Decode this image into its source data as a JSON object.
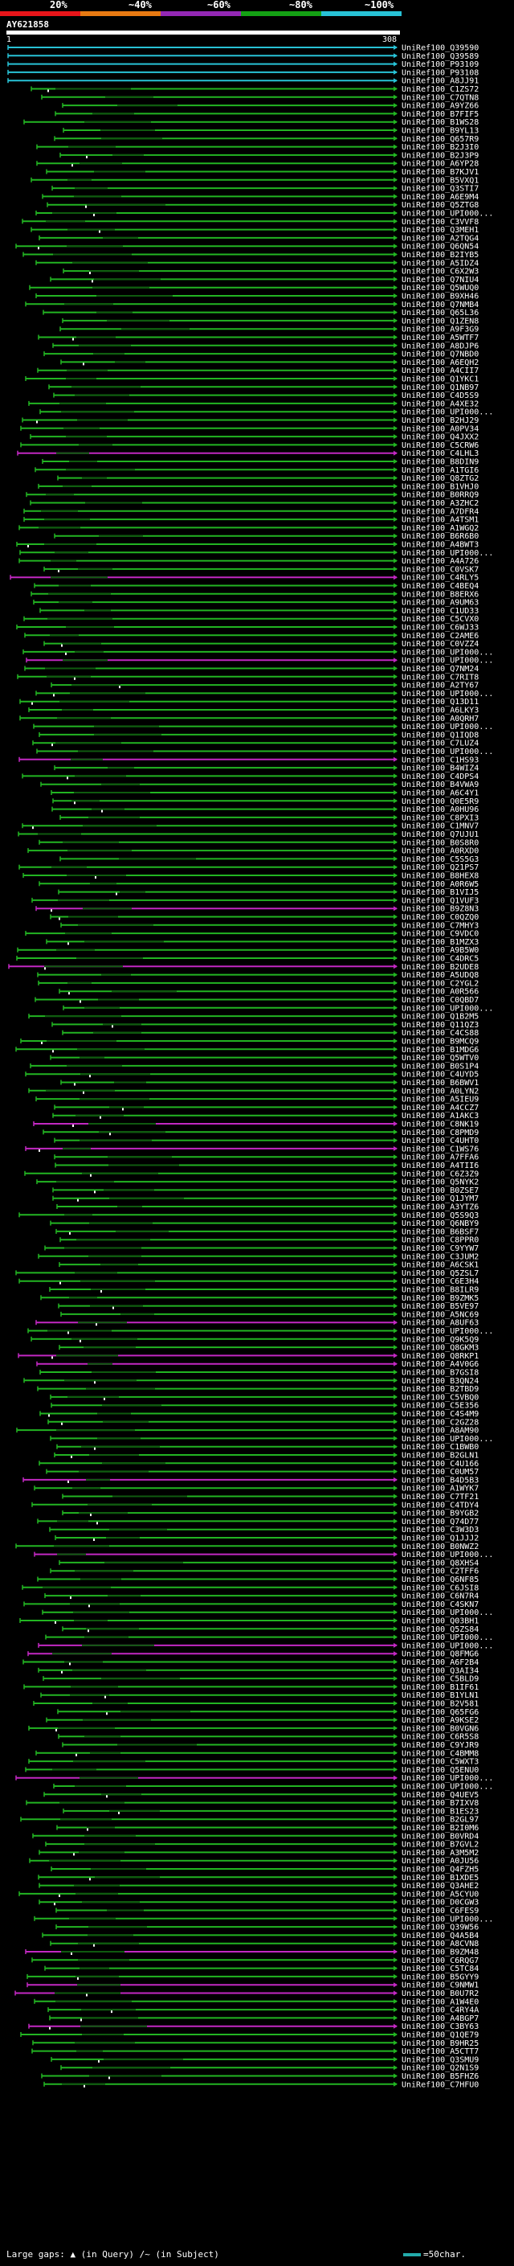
{
  "scale": {
    "labels": [
      "20%",
      "~40%",
      "~60%",
      "~80%",
      "~100%"
    ],
    "colors": [
      "#e8151a",
      "#e87a12",
      "#9428b5",
      "#14a114",
      "#28c2d6"
    ]
  },
  "query": {
    "title": "AY621858",
    "start": "1",
    "end": "308"
  },
  "palette": {
    "cyan": "#28c2d6",
    "green": "#22b522",
    "magenta": "#c228c2",
    "dark": "#0f5a0f"
  },
  "hits": [
    {
      "label": "UniRef100_Q39590",
      "color": "cyan"
    },
    {
      "label": "UniRef100_Q39589",
      "color": "cyan"
    },
    {
      "label": "UniRef100_P93109",
      "color": "cyan"
    },
    {
      "label": "UniRef100_P93108",
      "color": "cyan"
    },
    {
      "label": "UniRef100_A8JJ91",
      "color": "cyan"
    },
    {
      "label": "UniRef100_C1ZS72",
      "color": "green"
    },
    {
      "label": "UniRef100_C7QTN8",
      "color": "green"
    },
    {
      "label": "UniRef100_A9YZ66",
      "color": "green"
    },
    {
      "label": "UniRef100_B7FIF5",
      "color": "green"
    },
    {
      "label": "UniRef100_B1WS28",
      "color": "green"
    },
    {
      "label": "UniRef100_B9YL13",
      "color": "green"
    },
    {
      "label": "UniRef100_Q657R9",
      "color": "green"
    },
    {
      "label": "UniRef100_B2J3I0",
      "color": "green"
    },
    {
      "label": "UniRef100_B2J3P9",
      "color": "green"
    },
    {
      "label": "UniRef100_A6YP28",
      "color": "green"
    },
    {
      "label": "UniRef100_B7KJV1",
      "color": "green"
    },
    {
      "label": "UniRef100_B5VXQ1",
      "color": "green"
    },
    {
      "label": "UniRef100_Q3STI7",
      "color": "green"
    },
    {
      "label": "UniRef100_A6E9M4",
      "color": "green"
    },
    {
      "label": "UniRef100_Q5ZTG8",
      "color": "green"
    },
    {
      "label": "UniRef100_UPI000...",
      "color": "green"
    },
    {
      "label": "UniRef100_C3VVF8",
      "color": "green"
    },
    {
      "label": "UniRef100_Q3MEH1",
      "color": "green"
    },
    {
      "label": "UniRef100_A2TQG4",
      "color": "green"
    },
    {
      "label": "UniRef100_Q6QN54",
      "color": "green"
    },
    {
      "label": "UniRef100_B2IYB5",
      "color": "green"
    },
    {
      "label": "UniRef100_A5IDZ4",
      "color": "green"
    },
    {
      "label": "UniRef100_C6X2W3",
      "color": "green"
    },
    {
      "label": "UniRef100_Q7NIU4",
      "color": "green"
    },
    {
      "label": "UniRef100_Q5WUQ0",
      "color": "green"
    },
    {
      "label": "UniRef100_B9XH46",
      "color": "green"
    },
    {
      "label": "UniRef100_Q7NMB4",
      "color": "green"
    },
    {
      "label": "UniRef100_Q65L36",
      "color": "green"
    },
    {
      "label": "UniRef100_Q1ZEN8",
      "color": "green"
    },
    {
      "label": "UniRef100_A9F3G9",
      "color": "green"
    },
    {
      "label": "UniRef100_A5WTF7",
      "color": "green"
    },
    {
      "label": "UniRef100_A8DJP6",
      "color": "green"
    },
    {
      "label": "UniRef100_Q7NBD0",
      "color": "green"
    },
    {
      "label": "UniRef100_A6EQH2",
      "color": "green"
    },
    {
      "label": "UniRef100_A4CII7",
      "color": "green"
    },
    {
      "label": "UniRef100_Q1YKC1",
      "color": "green"
    },
    {
      "label": "UniRef100_Q1NB97",
      "color": "green"
    },
    {
      "label": "UniRef100_C4D5S9",
      "color": "green"
    },
    {
      "label": "UniRef100_A4XE32",
      "color": "green"
    },
    {
      "label": "UniRef100_UPI000...",
      "color": "green"
    },
    {
      "label": "UniRef100_B2HJ29",
      "color": "green"
    },
    {
      "label": "UniRef100_A0PV34",
      "color": "green"
    },
    {
      "label": "UniRef100_Q4JXX2",
      "color": "green"
    },
    {
      "label": "UniRef100_C5CRW6",
      "color": "green"
    },
    {
      "label": "UniRef100_C4LHL3",
      "color": "magenta"
    },
    {
      "label": "UniRef100_B8DIN9",
      "color": "green"
    },
    {
      "label": "UniRef100_A1TGI6",
      "color": "green"
    },
    {
      "label": "UniRef100_Q8ZTG2",
      "color": "green"
    },
    {
      "label": "UniRef100_B1VHJ0",
      "color": "green"
    },
    {
      "label": "UniRef100_B0RRQ9",
      "color": "green"
    },
    {
      "label": "UniRef100_A3ZHC2",
      "color": "green"
    },
    {
      "label": "UniRef100_A7DFR4",
      "color": "green"
    },
    {
      "label": "UniRef100_A4TSM1",
      "color": "green"
    },
    {
      "label": "UniRef100_A1WGQ2",
      "color": "green"
    },
    {
      "label": "UniRef100_B6R6B0",
      "color": "green"
    },
    {
      "label": "UniRef100_A4BWT3",
      "color": "green"
    },
    {
      "label": "UniRef100_UPI000...",
      "color": "green"
    },
    {
      "label": "UniRef100_A4A726",
      "color": "green"
    },
    {
      "label": "UniRef100_C0VSK7",
      "color": "green"
    },
    {
      "label": "UniRef100_C4RLY5",
      "color": "magenta"
    },
    {
      "label": "UniRef100_C4BEQ4",
      "color": "green"
    },
    {
      "label": "UniRef100_B8ERX6",
      "color": "green"
    },
    {
      "label": "UniRef100_A9UM63",
      "color": "green"
    },
    {
      "label": "UniRef100_C1UD33",
      "color": "green"
    },
    {
      "label": "UniRef100_C5CVX0",
      "color": "green"
    },
    {
      "label": "UniRef100_C6WJ33",
      "color": "green"
    },
    {
      "label": "UniRef100_C2AME6",
      "color": "green"
    },
    {
      "label": "UniRef100_C0VZZ4",
      "color": "green"
    },
    {
      "label": "UniRef100_UPI000...",
      "color": "green"
    },
    {
      "label": "UniRef100_UPI000...",
      "color": "magenta"
    },
    {
      "label": "UniRef100_Q7NM24",
      "color": "green"
    },
    {
      "label": "UniRef100_C7RIT8",
      "color": "green"
    },
    {
      "label": "UniRef100_A2TY67",
      "color": "green"
    },
    {
      "label": "UniRef100_UPI000...",
      "color": "green"
    },
    {
      "label": "UniRef100_Q13D11",
      "color": "green"
    },
    {
      "label": "UniRef100_A6LKY3",
      "color": "green"
    },
    {
      "label": "UniRef100_A0QRH7",
      "color": "green"
    },
    {
      "label": "UniRef100_UPI000...",
      "color": "green"
    },
    {
      "label": "UniRef100_Q1IQD8",
      "color": "green"
    },
    {
      "label": "UniRef100_C7LUZ4",
      "color": "green"
    },
    {
      "label": "UniRef100_UPI000...",
      "color": "green"
    },
    {
      "label": "UniRef100_C1HS93",
      "color": "magenta"
    },
    {
      "label": "UniRef100_B4WIZ4",
      "color": "green"
    },
    {
      "label": "UniRef100_C4DPS4",
      "color": "green"
    },
    {
      "label": "UniRef100_B4VWA9",
      "color": "green"
    },
    {
      "label": "UniRef100_A6C4Y1",
      "color": "green"
    },
    {
      "label": "UniRef100_Q0E5R9",
      "color": "green"
    },
    {
      "label": "UniRef100_A0HU96",
      "color": "green"
    },
    {
      "label": "UniRef100_C8PXI3",
      "color": "green"
    },
    {
      "label": "UniRef100_C1MNV7",
      "color": "green"
    },
    {
      "label": "UniRef100_Q7UJU1",
      "color": "green"
    },
    {
      "label": "UniRef100_B0S8R0",
      "color": "green"
    },
    {
      "label": "UniRef100_A0RXD0",
      "color": "green"
    },
    {
      "label": "UniRef100_C5S5G3",
      "color": "green"
    },
    {
      "label": "UniRef100_Q21PS7",
      "color": "green"
    },
    {
      "label": "UniRef100_B8HEX8",
      "color": "green"
    },
    {
      "label": "UniRef100_A0R6W5",
      "color": "green"
    },
    {
      "label": "UniRef100_B1VIJ5",
      "color": "green"
    },
    {
      "label": "UniRef100_Q1VUF3",
      "color": "green"
    },
    {
      "label": "UniRef100_B9Z8N3",
      "color": "magenta"
    },
    {
      "label": "UniRef100_C0QZQ0",
      "color": "green"
    },
    {
      "label": "UniRef100_C7MHY3",
      "color": "green"
    },
    {
      "label": "UniRef100_C9VDC0",
      "color": "green"
    },
    {
      "label": "UniRef100_B1MZX3",
      "color": "green"
    },
    {
      "label": "UniRef100_A9B5W0",
      "color": "green"
    },
    {
      "label": "UniRef100_C4DRC5",
      "color": "green"
    },
    {
      "label": "UniRef100_B2UDE8",
      "color": "magenta"
    },
    {
      "label": "UniRef100_A5UDQ8",
      "color": "green"
    },
    {
      "label": "UniRef100_C2YGL2",
      "color": "green"
    },
    {
      "label": "UniRef100_A0R566",
      "color": "green"
    },
    {
      "label": "UniRef100_C0QBD7",
      "color": "green"
    },
    {
      "label": "UniRef100_UPI000...",
      "color": "green"
    },
    {
      "label": "UniRef100_Q1B2M5",
      "color": "green"
    },
    {
      "label": "UniRef100_Q11QZ3",
      "color": "green"
    },
    {
      "label": "UniRef100_C4CS88",
      "color": "green"
    },
    {
      "label": "UniRef100_B9MCQ9",
      "color": "green"
    },
    {
      "label": "UniRef100_B1MDG6",
      "color": "green"
    },
    {
      "label": "UniRef100_Q5WTV0",
      "color": "green"
    },
    {
      "label": "UniRef100_B0S1P4",
      "color": "green"
    },
    {
      "label": "UniRef100_C4UYD5",
      "color": "green"
    },
    {
      "label": "UniRef100_B6BWV1",
      "color": "green"
    },
    {
      "label": "UniRef100_A0LYN2",
      "color": "green"
    },
    {
      "label": "UniRef100_A5IEU9",
      "color": "green"
    },
    {
      "label": "UniRef100_A4CCZ7",
      "color": "green"
    },
    {
      "label": "UniRef100_A1AKC3",
      "color": "green"
    },
    {
      "label": "UniRef100_C8NK19",
      "color": "magenta"
    },
    {
      "label": "UniRef100_C8PMD9",
      "color": "green"
    },
    {
      "label": "UniRef100_C4UHT0",
      "color": "green"
    },
    {
      "label": "UniRef100_C1WS76",
      "color": "magenta"
    },
    {
      "label": "UniRef100_A7FFA6",
      "color": "green"
    },
    {
      "label": "UniRef100_A4TII6",
      "color": "green"
    },
    {
      "label": "UniRef100_C6Z3Z9",
      "color": "green"
    },
    {
      "label": "UniRef100_Q5NYK2",
      "color": "green"
    },
    {
      "label": "UniRef100_B0ZSE7",
      "color": "green"
    },
    {
      "label": "UniRef100_Q1JYM7",
      "color": "green"
    },
    {
      "label": "UniRef100_A3YTZ6",
      "color": "green"
    },
    {
      "label": "UniRef100_Q5S9Q3",
      "color": "green"
    },
    {
      "label": "UniRef100_Q6NBY9",
      "color": "green"
    },
    {
      "label": "UniRef100_B6BSF7",
      "color": "green"
    },
    {
      "label": "UniRef100_C8PPR0",
      "color": "green"
    },
    {
      "label": "UniRef100_C9YYW7",
      "color": "green"
    },
    {
      "label": "UniRef100_C3JUM2",
      "color": "green"
    },
    {
      "label": "UniRef100_A6CSK1",
      "color": "green"
    },
    {
      "label": "UniRef100_Q5ZSL7",
      "color": "green"
    },
    {
      "label": "UniRef100_C6E3H4",
      "color": "green"
    },
    {
      "label": "UniRef100_B8ILR9",
      "color": "green"
    },
    {
      "label": "UniRef100_B9ZMK5",
      "color": "green"
    },
    {
      "label": "UniRef100_B5VE97",
      "color": "green"
    },
    {
      "label": "UniRef100_A5NC69",
      "color": "green"
    },
    {
      "label": "UniRef100_A8UF63",
      "color": "magenta"
    },
    {
      "label": "UniRef100_UPI000...",
      "color": "green"
    },
    {
      "label": "UniRef100_Q9K5Q9",
      "color": "green"
    },
    {
      "label": "UniRef100_Q8GKM3",
      "color": "green"
    },
    {
      "label": "UniRef100_Q8RKP1",
      "color": "magenta"
    },
    {
      "label": "UniRef100_A4V0G6",
      "color": "magenta"
    },
    {
      "label": "UniRef100_B7GSI8",
      "color": "green"
    },
    {
      "label": "UniRef100_B3QN24",
      "color": "green"
    },
    {
      "label": "UniRef100_B2TBD9",
      "color": "green"
    },
    {
      "label": "UniRef100_C5VBQ0",
      "color": "green"
    },
    {
      "label": "UniRef100_C5E356",
      "color": "green"
    },
    {
      "label": "UniRef100_C4S4M9",
      "color": "green"
    },
    {
      "label": "UniRef100_C2GZ28",
      "color": "green"
    },
    {
      "label": "UniRef100_A8AM90",
      "color": "green"
    },
    {
      "label": "UniRef100_UPI000...",
      "color": "green"
    },
    {
      "label": "UniRef100_C1BWB0",
      "color": "green"
    },
    {
      "label": "UniRef100_B2GLN1",
      "color": "green"
    },
    {
      "label": "UniRef100_C4U166",
      "color": "green"
    },
    {
      "label": "UniRef100_C0UM57",
      "color": "green"
    },
    {
      "label": "UniRef100_B4D5B3",
      "color": "magenta"
    },
    {
      "label": "UniRef100_A1WYK7",
      "color": "green"
    },
    {
      "label": "UniRef100_C7TF21",
      "color": "green"
    },
    {
      "label": "UniRef100_C4TDY4",
      "color": "green"
    },
    {
      "label": "UniRef100_B9YGB2",
      "color": "green"
    },
    {
      "label": "UniRef100_Q74D77",
      "color": "green"
    },
    {
      "label": "UniRef100_C3W3D3",
      "color": "green"
    },
    {
      "label": "UniRef100_Q1JJJ2",
      "color": "green"
    },
    {
      "label": "UniRef100_B0NWZ2",
      "color": "green"
    },
    {
      "label": "UniRef100_UPI000...",
      "color": "magenta"
    },
    {
      "label": "UniRef100_Q8XHS4",
      "color": "green"
    },
    {
      "label": "UniRef100_C2TFF6",
      "color": "green"
    },
    {
      "label": "UniRef100_Q6NF85",
      "color": "green"
    },
    {
      "label": "UniRef100_C6JSI8",
      "color": "green"
    },
    {
      "label": "UniRef100_C6N7R4",
      "color": "green"
    },
    {
      "label": "UniRef100_C4SKN7",
      "color": "green"
    },
    {
      "label": "UniRef100_UPI000...",
      "color": "green"
    },
    {
      "label": "UniRef100_Q03BH1",
      "color": "green"
    },
    {
      "label": "UniRef100_Q5ZS84",
      "color": "green"
    },
    {
      "label": "UniRef100_UPI000...",
      "color": "green"
    },
    {
      "label": "UniRef100_UPI000...",
      "color": "magenta"
    },
    {
      "label": "UniRef100_Q8FMG6",
      "color": "magenta"
    },
    {
      "label": "UniRef100_A6F2B4",
      "color": "green"
    },
    {
      "label": "UniRef100_Q3AI34",
      "color": "green"
    },
    {
      "label": "UniRef100_C5BLD9",
      "color": "green"
    },
    {
      "label": "UniRef100_B1IF61",
      "color": "green"
    },
    {
      "label": "UniRef100_B1YLN1",
      "color": "green"
    },
    {
      "label": "UniRef100_B2V581",
      "color": "green"
    },
    {
      "label": "UniRef100_Q65FG6",
      "color": "green"
    },
    {
      "label": "UniRef100_A9KSE2",
      "color": "green"
    },
    {
      "label": "UniRef100_B0VGN6",
      "color": "green"
    },
    {
      "label": "UniRef100_C6R5S8",
      "color": "green"
    },
    {
      "label": "UniRef100_C9YJR9",
      "color": "green"
    },
    {
      "label": "UniRef100_C4BMM8",
      "color": "green"
    },
    {
      "label": "UniRef100_C5WXT3",
      "color": "green"
    },
    {
      "label": "UniRef100_Q5ENU0",
      "color": "green"
    },
    {
      "label": "UniRef100_UPI000...",
      "color": "magenta"
    },
    {
      "label": "UniRef100_UPI000...",
      "color": "green"
    },
    {
      "label": "UniRef100_Q4UEV5",
      "color": "green"
    },
    {
      "label": "UniRef100_B7IXV8",
      "color": "green"
    },
    {
      "label": "UniRef100_B1ES23",
      "color": "green"
    },
    {
      "label": "UniRef100_B2GL97",
      "color": "green"
    },
    {
      "label": "UniRef100_B2I0M6",
      "color": "green"
    },
    {
      "label": "UniRef100_B0VRD4",
      "color": "green"
    },
    {
      "label": "UniRef100_B7GVL2",
      "color": "green"
    },
    {
      "label": "UniRef100_A3M5M2",
      "color": "green"
    },
    {
      "label": "UniRef100_A0JU56",
      "color": "green"
    },
    {
      "label": "UniRef100_Q4FZH5",
      "color": "green"
    },
    {
      "label": "UniRef100_B1XDE5",
      "color": "green"
    },
    {
      "label": "UniRef100_Q3AHE2",
      "color": "green"
    },
    {
      "label": "UniRef100_A5CYU0",
      "color": "green"
    },
    {
      "label": "UniRef100_D0CGW3",
      "color": "green"
    },
    {
      "label": "UniRef100_C6FES9",
      "color": "green"
    },
    {
      "label": "UniRef100_UPI000...",
      "color": "green"
    },
    {
      "label": "UniRef100_Q39W56",
      "color": "green"
    },
    {
      "label": "UniRef100_Q4A5B4",
      "color": "green"
    },
    {
      "label": "UniRef100_A8CVN8",
      "color": "green"
    },
    {
      "label": "UniRef100_B9ZM48",
      "color": "magenta"
    },
    {
      "label": "UniRef100_C6RQG7",
      "color": "green"
    },
    {
      "label": "UniRef100_C5TC84",
      "color": "green"
    },
    {
      "label": "UniRef100_B5GYY9",
      "color": "green"
    },
    {
      "label": "UniRef100_C9NMW1",
      "color": "magenta"
    },
    {
      "label": "UniRef100_B0U7R2",
      "color": "magenta"
    },
    {
      "label": "UniRef100_A1W4E0",
      "color": "green"
    },
    {
      "label": "UniRef100_C4RY4A",
      "color": "green"
    },
    {
      "label": "UniRef100_A4BGP7",
      "color": "green"
    },
    {
      "label": "UniRef100_C3BY63",
      "color": "magenta"
    },
    {
      "label": "UniRef100_Q1QE79",
      "color": "green"
    },
    {
      "label": "UniRef100_B9HR25",
      "color": "green"
    },
    {
      "label": "UniRef100_A5CTT7",
      "color": "green"
    },
    {
      "label": "UniRef100_Q3SMU9",
      "color": "green"
    },
    {
      "label": "UniRef100_Q2N1S9",
      "color": "green"
    },
    {
      "label": "UniRef100_B5FHZ6",
      "color": "green"
    },
    {
      "label": "UniRef100_C7HFU0",
      "color": "green"
    }
  ],
  "legend": {
    "large_gaps": "Large gaps:",
    "query_gap": "(in Query)",
    "subject_gap": "/~ (in Subject)",
    "scale_note": "=50char."
  }
}
